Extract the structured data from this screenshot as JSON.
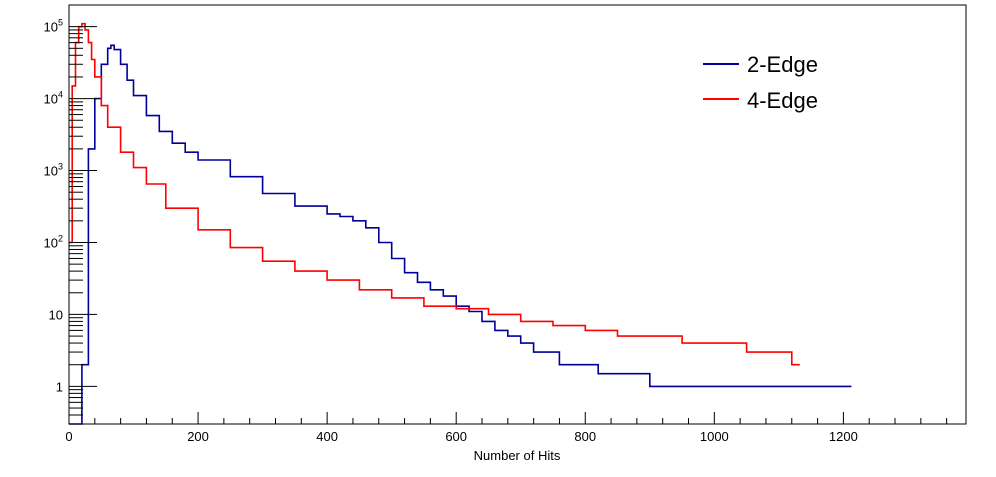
{
  "chart_data": {
    "type": "line",
    "style": "step-histogram",
    "title": "",
    "xlabel": "Number of Hits",
    "ylabel": "",
    "xlim": [
      0,
      1390
    ],
    "ylim": [
      0.3,
      200000
    ],
    "y_scale": "log",
    "grid": false,
    "legend_position": "top-right",
    "x_ticks": [
      0,
      200,
      400,
      600,
      800,
      1000,
      1200
    ],
    "x_tick_labels": [
      "0",
      "200",
      "400",
      "600",
      "800",
      "1000",
      "1200"
    ],
    "y_ticks": [
      1,
      10,
      100,
      1000,
      10000,
      100000
    ],
    "y_tick_labels": [
      {
        "base": "1",
        "exp": ""
      },
      {
        "base": "10",
        "exp": ""
      },
      {
        "base": "10",
        "exp": "2"
      },
      {
        "base": "10",
        "exp": "3"
      },
      {
        "base": "10",
        "exp": "4"
      },
      {
        "base": "10",
        "exp": "5"
      }
    ],
    "series": [
      {
        "name": "2-Edge",
        "color": "#000099",
        "x": [
          0,
          10,
          20,
          30,
          40,
          50,
          60,
          65,
          70,
          80,
          90,
          100,
          120,
          140,
          160,
          180,
          200,
          250,
          300,
          350,
          400,
          420,
          440,
          460,
          480,
          500,
          520,
          540,
          560,
          580,
          600,
          620,
          640,
          660,
          680,
          700,
          720,
          740,
          760,
          780,
          800,
          820,
          850,
          900,
          950,
          1000,
          1050,
          1100,
          1150,
          1200
        ],
        "values": [
          0,
          0,
          2,
          2000,
          10000,
          30000,
          50000,
          55000,
          48000,
          30000,
          18000,
          11000,
          5800,
          3500,
          2400,
          1800,
          1400,
          820,
          480,
          320,
          250,
          230,
          200,
          160,
          100,
          60,
          38,
          28,
          22,
          18,
          13,
          11,
          8,
          6,
          5,
          4,
          3,
          3,
          2,
          2,
          2,
          1.5,
          1.5,
          1,
          1,
          1,
          1,
          1,
          1,
          1
        ]
      },
      {
        "name": "4-Edge",
        "color": "#ff0000",
        "x": [
          0,
          5,
          10,
          15,
          20,
          25,
          30,
          35,
          40,
          50,
          60,
          80,
          100,
          120,
          150,
          200,
          250,
          300,
          350,
          400,
          450,
          500,
          550,
          600,
          650,
          700,
          750,
          800,
          850,
          900,
          950,
          1000,
          1050,
          1100,
          1120
        ],
        "values": [
          100,
          15000,
          60000,
          100000,
          110000,
          90000,
          60000,
          35000,
          20000,
          8000,
          4000,
          1800,
          1100,
          650,
          300,
          150,
          85,
          55,
          40,
          30,
          22,
          17,
          13,
          12,
          10,
          8,
          7,
          6,
          5,
          5,
          4,
          4,
          3,
          3,
          2
        ]
      }
    ]
  }
}
